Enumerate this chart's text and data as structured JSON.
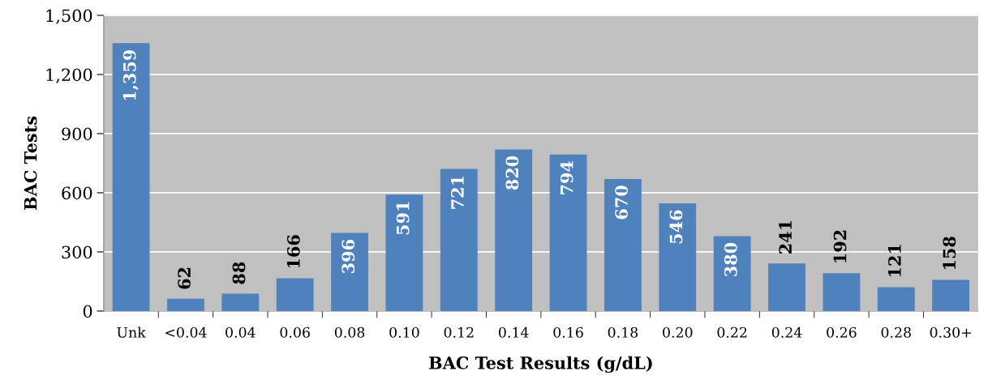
{
  "chart_data": {
    "type": "bar",
    "xlabel": "BAC Test Results (g/dL)",
    "ylabel": "BAC Tests",
    "categories": [
      "Unk",
      "<0.04",
      "0.04",
      "0.06",
      "0.08",
      "0.10",
      "0.12",
      "0.14",
      "0.16",
      "0.18",
      "0.20",
      "0.22",
      "0.24",
      "0.26",
      "0.28",
      "0.30+"
    ],
    "values": [
      1359,
      62,
      88,
      166,
      396,
      591,
      721,
      820,
      794,
      670,
      546,
      380,
      241,
      192,
      121,
      158
    ],
    "value_labels": [
      "1,359",
      "62",
      "88",
      "166",
      "396",
      "591",
      "721",
      "820",
      "794",
      "670",
      "546",
      "380",
      "241",
      "192",
      "121",
      "158"
    ],
    "color": "#4f81bd",
    "ylim": [
      0,
      1500
    ],
    "yticks": [
      0,
      300,
      600,
      900,
      {
        "value": 1200,
        "label": "1,200"
      },
      {
        "value": 1500,
        "label": "1,500"
      }
    ],
    "grid": "y"
  }
}
